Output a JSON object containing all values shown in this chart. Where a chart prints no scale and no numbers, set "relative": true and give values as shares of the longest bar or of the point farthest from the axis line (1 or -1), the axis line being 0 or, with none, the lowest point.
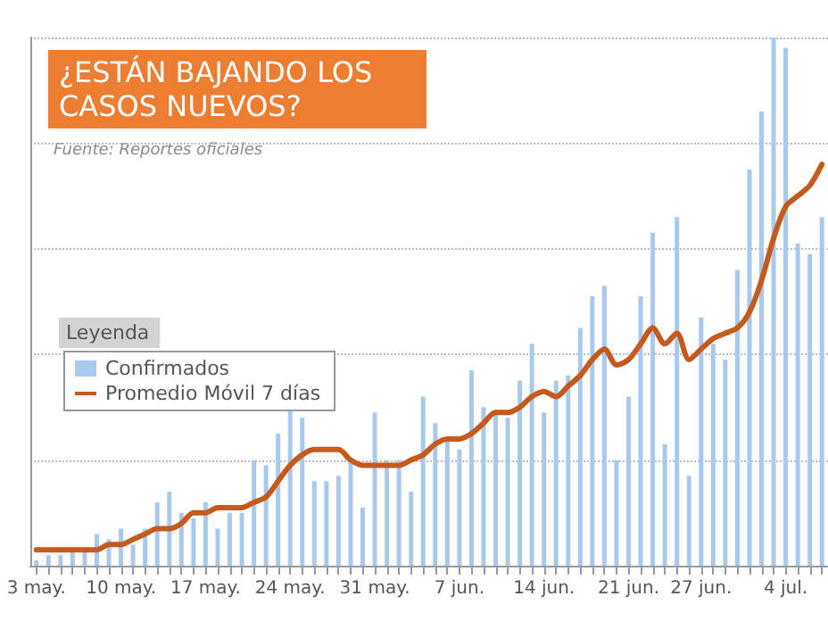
{
  "chart_data": {
    "type": "bar",
    "title": "¿ESTÁN BAJANDO LOS CASOS NUEVOS?",
    "annotations": [
      "Fuente: Reportes oficiales"
    ],
    "legend_title": "Leyenda",
    "relative": true,
    "grid": "y",
    "legend": "left",
    "categories": [
      "3 may.",
      null,
      null,
      null,
      null,
      null,
      null,
      "10 may.",
      null,
      null,
      null,
      null,
      null,
      null,
      "17 may.",
      null,
      null,
      null,
      null,
      null,
      null,
      "24 may.",
      null,
      null,
      null,
      null,
      null,
      null,
      "31 may.",
      null,
      null,
      null,
      null,
      null,
      null,
      "7 jun.",
      null,
      null,
      null,
      null,
      null,
      null,
      "14 jun.",
      null,
      null,
      null,
      null,
      null,
      null,
      "21 jun.",
      null,
      null,
      null,
      null,
      null,
      "27 jun.",
      null,
      null,
      null,
      null,
      null,
      null,
      "4 jul.",
      null,
      null,
      null
    ],
    "series": [
      {
        "name": "Confirmados",
        "color": "#a9c9ec",
        "values": [
          0.01,
          0.02,
          0.02,
          0.03,
          0.03,
          0.06,
          0.05,
          0.07,
          0.04,
          0.07,
          0.12,
          0.14,
          0.1,
          0.09,
          0.12,
          0.07,
          0.1,
          0.1,
          0.2,
          0.19,
          0.25,
          0.3,
          0.28,
          0.16,
          0.16,
          0.17,
          0.2,
          0.11,
          0.29,
          0.2,
          0.2,
          0.14,
          0.32,
          0.27,
          0.24,
          0.22,
          0.37,
          0.3,
          0.29,
          0.28,
          0.35,
          0.42,
          0.29,
          0.35,
          0.36,
          0.45,
          0.51,
          0.53,
          0.2,
          0.32,
          0.51,
          0.63,
          0.23,
          0.66,
          0.17,
          0.47,
          0.42,
          0.39,
          0.56,
          0.75,
          0.86,
          1,
          0.98,
          0.61,
          0.59,
          0.66
        ]
      },
      {
        "name": "Promedio Móvil 7 días",
        "type": "line",
        "color": "#c55a1c",
        "marker": "none",
        "line_style": "solid",
        "values": [
          0.03,
          0.03,
          0.03,
          0.03,
          0.03,
          0.03,
          0.04,
          0.04,
          0.05,
          0.06,
          0.07,
          0.07,
          0.08,
          0.1,
          0.1,
          0.11,
          0.11,
          0.11,
          0.12,
          0.13,
          0.16,
          0.19,
          0.21,
          0.22,
          0.22,
          0.22,
          0.2,
          0.19,
          0.19,
          0.19,
          0.19,
          0.2,
          0.21,
          0.23,
          0.24,
          0.24,
          0.25,
          0.27,
          0.29,
          0.29,
          0.3,
          0.32,
          0.33,
          0.32,
          0.34,
          0.36,
          0.39,
          0.41,
          0.38,
          0.39,
          0.42,
          0.45,
          0.42,
          0.44,
          0.39,
          0.41,
          0.43,
          0.44,
          0.45,
          0.48,
          0.54,
          0.62,
          0.68,
          0.7,
          0.72,
          0.76
        ]
      }
    ]
  }
}
